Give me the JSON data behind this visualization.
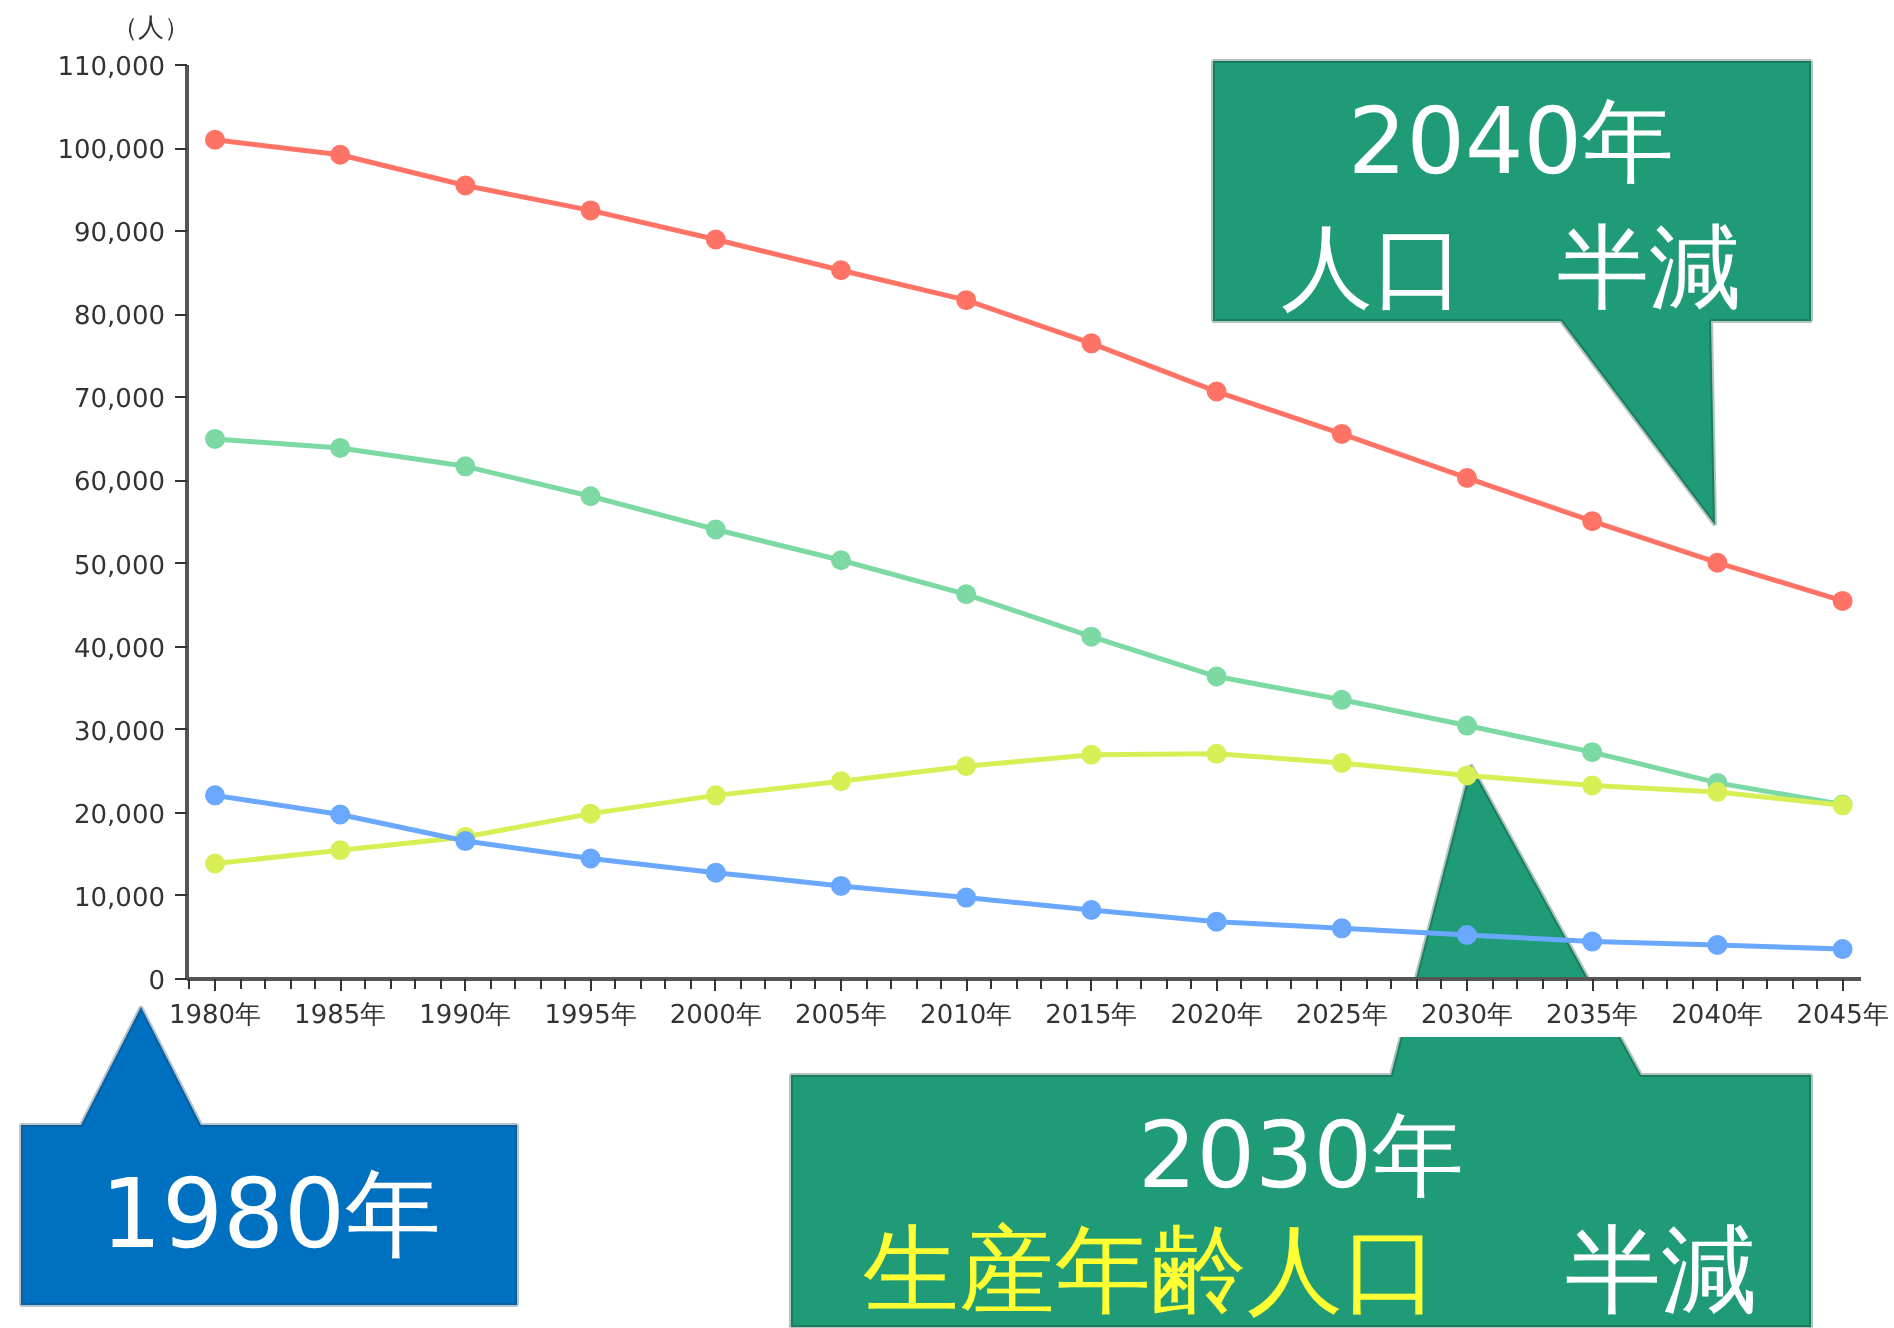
{
  "chart_data": {
    "type": "line",
    "ylabel": "（人）",
    "categories": [
      "1980年",
      "1985年",
      "1990年",
      "1995年",
      "2000年",
      "2005年",
      "2010年",
      "2015年",
      "2020年",
      "2025年",
      "2030年",
      "2035年",
      "2040年",
      "2045年"
    ],
    "series": [
      {
        "color": "#ff7366",
        "values": [
          101000,
          99200,
          95500,
          92500,
          89000,
          85300,
          81700,
          76500,
          70700,
          65600,
          60300,
          55100,
          50100,
          45500
        ]
      },
      {
        "color": "#7cd9a3",
        "values": [
          65000,
          63900,
          61700,
          58100,
          54100,
          50400,
          46300,
          41200,
          36400,
          33600,
          30500,
          27300,
          23600,
          21000
        ]
      },
      {
        "color": "#d7ef55",
        "values": [
          13900,
          15500,
          17100,
          19900,
          22100,
          23800,
          25600,
          27000,
          27100,
          26000,
          24500,
          23300,
          22500,
          20900
        ]
      },
      {
        "color": "#6aa8ff",
        "values": [
          22100,
          19800,
          16600,
          14500,
          12800,
          11200,
          9800,
          8300,
          6900,
          6100,
          5300,
          4500,
          4100,
          3600
        ]
      }
    ],
    "ylim": [
      0,
      110000
    ],
    "yticks": [
      0,
      {
        "value": 10000,
        "label": "10,000"
      },
      {
        "value": 20000,
        "label": "20,000"
      },
      {
        "value": 30000,
        "label": "30,000"
      },
      {
        "value": 40000,
        "label": "40,000"
      },
      {
        "value": 50000,
        "label": "50,000"
      },
      {
        "value": 60000,
        "label": "60,000"
      },
      {
        "value": 70000,
        "label": "70,000"
      },
      {
        "value": 80000,
        "label": "80,000"
      },
      {
        "value": 90000,
        "label": "90,000"
      },
      {
        "value": 100000,
        "label": "100,000"
      },
      {
        "value": 110000,
        "label": "110,000"
      }
    ],
    "grid": false,
    "marker": "circle",
    "line_style": "solid",
    "annotations": [
      "2040年",
      "人口　半減",
      "2030年",
      "生産年齢人口",
      "半減",
      "1980年"
    ]
  }
}
